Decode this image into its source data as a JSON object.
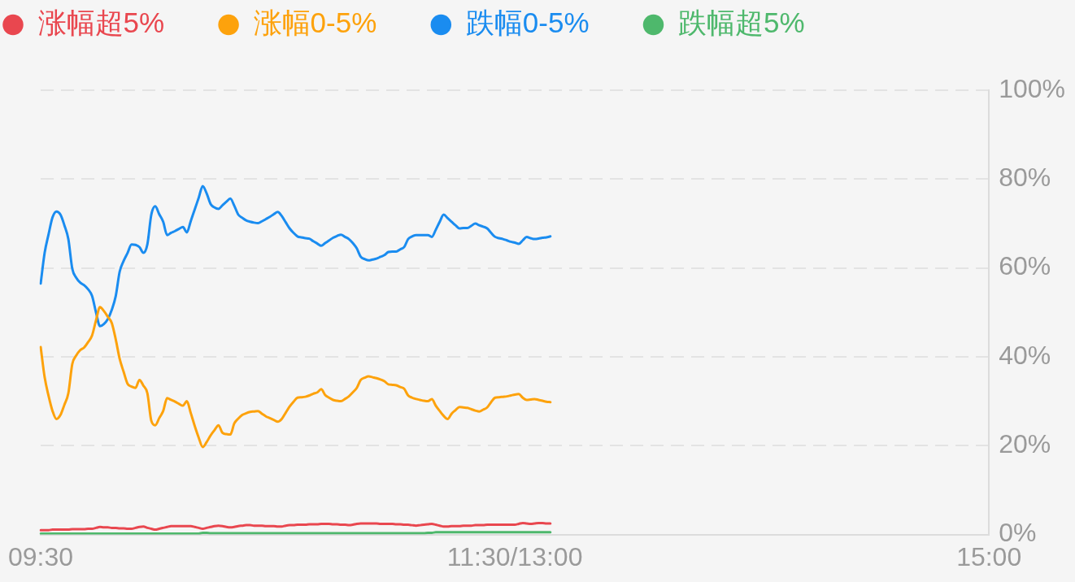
{
  "chart_data": {
    "type": "line",
    "legend": "top left",
    "grid": "y",
    "categories": [
      "09:30",
      null,
      null,
      null,
      null,
      null,
      null,
      null,
      null,
      null,
      null,
      null,
      null,
      null,
      null,
      null,
      null,
      null,
      null,
      null,
      null,
      null,
      null,
      null,
      null,
      null,
      null,
      null,
      null,
      null,
      null,
      null,
      null,
      null,
      null,
      null,
      null,
      null,
      null,
      null,
      null,
      null,
      null,
      null,
      null,
      null,
      null,
      null,
      null,
      null,
      null,
      null,
      null,
      null,
      null,
      null,
      null,
      null,
      null,
      null,
      null,
      null,
      null,
      null,
      null,
      null,
      null,
      null,
      null,
      null,
      null,
      null,
      null,
      null,
      null,
      null,
      null,
      null,
      null,
      null,
      null,
      null,
      null,
      null,
      null,
      null,
      null,
      null,
      null,
      null,
      null,
      null,
      null,
      null,
      null,
      null,
      null,
      null,
      null,
      null,
      null,
      null,
      null,
      null,
      null,
      null,
      null,
      null,
      null,
      null,
      null,
      null,
      null,
      null,
      null,
      null,
      null,
      null,
      null,
      null,
      "11:30/13:00",
      null,
      null,
      null,
      null,
      null,
      null,
      null,
      null,
      null,
      null,
      null,
      null,
      null,
      null,
      null,
      null,
      null,
      null,
      null,
      null,
      null,
      null,
      null,
      null,
      null,
      null,
      null,
      null,
      null,
      null,
      null,
      null,
      null,
      null,
      null,
      null,
      null,
      null,
      null,
      null,
      null,
      null,
      null,
      null,
      null,
      null,
      null,
      null,
      null,
      null,
      null,
      null,
      null,
      null,
      null,
      null,
      null,
      null,
      null,
      null,
      null,
      null,
      null,
      null,
      null,
      null,
      null,
      null,
      null,
      null,
      null,
      null,
      null,
      null,
      null,
      null,
      null,
      null,
      null,
      null,
      null,
      null,
      null,
      null,
      null,
      null,
      null,
      null,
      null,
      null,
      null,
      null,
      null,
      null,
      null,
      null,
      null,
      null,
      null,
      null,
      null,
      null,
      null,
      null,
      null,
      null,
      null,
      null,
      null,
      null,
      null,
      null,
      null,
      null,
      null,
      null,
      null,
      null,
      null,
      "15:00"
    ],
    "ylim": [
      0,
      100
    ],
    "yticks": [
      {
        "value": 0,
        "label": "0%"
      },
      {
        "value": 20,
        "label": "20%"
      },
      {
        "value": 40,
        "label": "40%"
      },
      {
        "value": 60,
        "label": "60%"
      },
      {
        "value": 80,
        "label": "80%"
      },
      {
        "value": 100,
        "label": "100%"
      }
    ],
    "series": [
      {
        "name": "涨幅超5%",
        "color": "#e9474f",
        "values": [
          1.0,
          1.0,
          1.0,
          1.1,
          1.1,
          1.1,
          1.1,
          1.1,
          1.2,
          1.2,
          1.2,
          1.2,
          1.3,
          1.3,
          1.5,
          1.7,
          1.6,
          1.6,
          1.5,
          1.5,
          1.4,
          1.4,
          1.3,
          1.3,
          1.5,
          1.7,
          1.8,
          1.5,
          1.3,
          1.1,
          1.3,
          1.5,
          1.7,
          1.9,
          1.9,
          1.9,
          1.9,
          1.9,
          1.9,
          1.7,
          1.5,
          1.3,
          1.5,
          1.7,
          1.9,
          2.0,
          1.9,
          1.7,
          1.6,
          1.7,
          1.9,
          2.0,
          2.1,
          2.1,
          2.0,
          2.0,
          2.0,
          1.9,
          1.9,
          1.9,
          1.8,
          1.8,
          2.0,
          2.1,
          2.1,
          2.2,
          2.2,
          2.2,
          2.3,
          2.3,
          2.3,
          2.4,
          2.4,
          2.4,
          2.3,
          2.3,
          2.2,
          2.2,
          2.1,
          2.2,
          2.4,
          2.5,
          2.5,
          2.5,
          2.5,
          2.5,
          2.4,
          2.4,
          2.4,
          2.4,
          2.3,
          2.3,
          2.2,
          2.2,
          2.1,
          2.0,
          2.1,
          2.2,
          2.3,
          2.4,
          2.2,
          2.0,
          1.8,
          1.8,
          1.9,
          1.9,
          1.9,
          2.0,
          2.0,
          2.0,
          2.1,
          2.1,
          2.1,
          2.2,
          2.2,
          2.2,
          2.2,
          2.2,
          2.2,
          2.2,
          2.2,
          2.4,
          2.6,
          2.5,
          2.4,
          2.5,
          2.6,
          2.6,
          2.5,
          2.5,
          null,
          null,
          null,
          null,
          null,
          null,
          null,
          null,
          null,
          null,
          null,
          null,
          null,
          null,
          null,
          null,
          null,
          null,
          null,
          null,
          null,
          null,
          null,
          null,
          null,
          null,
          null,
          null,
          null,
          null,
          null,
          null,
          null,
          null,
          null,
          null,
          null,
          null,
          null,
          null,
          null,
          null,
          null,
          null,
          null,
          null,
          null,
          null,
          null,
          null,
          null,
          null,
          null,
          null,
          null,
          null,
          null,
          null,
          null,
          null,
          null,
          null,
          null,
          null,
          null,
          null,
          null,
          null,
          null,
          null,
          null,
          null,
          null,
          null,
          null,
          null,
          null,
          null,
          null,
          null,
          null,
          null,
          null,
          null,
          null,
          null,
          null,
          null,
          null,
          null,
          null,
          null,
          null,
          null,
          null,
          null,
          null,
          null,
          null,
          null,
          null,
          null,
          null,
          null,
          null,
          null,
          null,
          null,
          null,
          null,
          null
        ]
      },
      {
        "name": "涨幅0-5%",
        "color": "#fda20c",
        "values": [
          42.2,
          35.4,
          31.2,
          27.8,
          26.0,
          26.9,
          29.2,
          31.8,
          38.4,
          40.3,
          41.5,
          42.1,
          43.3,
          44.8,
          48.2,
          51.2,
          50.3,
          49.0,
          47.6,
          43.9,
          39.5,
          36.6,
          33.9,
          33.3,
          33.0,
          34.8,
          33.5,
          31.8,
          25.6,
          24.6,
          26.2,
          27.8,
          30.7,
          30.3,
          29.9,
          29.4,
          29.0,
          30.0,
          27.3,
          24.4,
          21.8,
          19.7,
          20.8,
          22.3,
          23.5,
          24.6,
          22.9,
          22.6,
          22.5,
          25.0,
          26.1,
          26.9,
          27.3,
          27.6,
          27.7,
          27.8,
          27.2,
          26.6,
          26.2,
          25.8,
          25.4,
          26.0,
          27.4,
          28.8,
          29.9,
          30.8,
          30.9,
          31.0,
          31.3,
          31.7,
          32.0,
          32.7,
          31.4,
          30.8,
          30.3,
          30.1,
          30.0,
          30.5,
          31.1,
          32.0,
          33.0,
          34.8,
          35.3,
          35.6,
          35.4,
          35.2,
          34.9,
          34.5,
          33.8,
          33.7,
          33.6,
          33.2,
          32.8,
          31.3,
          30.8,
          30.5,
          30.3,
          30.1,
          30.0,
          30.5,
          29.0,
          27.8,
          26.7,
          26.0,
          27.2,
          28.0,
          28.7,
          28.6,
          28.5,
          28.2,
          27.9,
          27.7,
          28.1,
          28.6,
          29.8,
          30.8,
          30.9,
          31.0,
          31.1,
          31.3,
          31.5,
          31.6,
          30.8,
          30.3,
          30.4,
          30.5,
          30.3,
          30.1,
          29.9,
          29.8,
          null,
          null,
          null,
          null,
          null,
          null,
          null,
          null,
          null,
          null,
          null,
          null,
          null,
          null,
          null,
          null,
          null,
          null,
          null,
          null,
          null,
          null,
          null,
          null,
          null,
          null,
          null,
          null,
          null,
          null,
          null,
          null,
          null,
          null,
          null,
          null,
          null,
          null,
          null,
          null,
          null,
          null,
          null,
          null,
          null,
          null,
          null,
          null,
          null,
          null,
          null,
          null,
          null,
          null,
          null,
          null,
          null,
          null,
          null,
          null,
          null,
          null,
          null,
          null,
          null,
          null,
          null,
          null,
          null,
          null,
          null,
          null,
          null,
          null,
          null,
          null,
          null,
          null,
          null,
          null,
          null,
          null,
          null,
          null,
          null,
          null,
          null,
          null,
          null,
          null,
          null,
          null,
          null,
          null,
          null,
          null,
          null,
          null,
          null,
          null,
          null,
          null,
          null,
          null,
          null,
          null,
          null,
          null,
          null,
          null,
          null
        ]
      },
      {
        "name": "跌幅0-5%",
        "color": "#1a8cf0",
        "values": [
          56.5,
          63.4,
          67.6,
          71.4,
          72.7,
          72.0,
          69.6,
          66.5,
          59.8,
          57.8,
          56.7,
          56.1,
          55.2,
          53.7,
          50.0,
          46.9,
          47.4,
          48.5,
          50.6,
          53.7,
          59.2,
          61.6,
          63.4,
          65.3,
          65.2,
          64.7,
          63.4,
          65.3,
          72.0,
          73.9,
          72.1,
          70.4,
          67.4,
          67.9,
          68.3,
          68.8,
          69.2,
          68.0,
          70.6,
          73.2,
          75.8,
          78.4,
          76.8,
          74.4,
          73.6,
          73.3,
          74.1,
          74.9,
          75.6,
          74.0,
          72.0,
          71.3,
          70.7,
          70.4,
          70.2,
          70.1,
          70.5,
          71.0,
          71.5,
          72.1,
          72.6,
          71.7,
          70.3,
          68.9,
          67.9,
          67.1,
          66.9,
          66.7,
          66.6,
          66.0,
          65.5,
          65.0,
          65.6,
          66.2,
          66.8,
          67.2,
          67.5,
          67.0,
          66.5,
          65.6,
          64.4,
          62.5,
          62.0,
          61.7,
          61.9,
          62.1,
          62.5,
          62.9,
          63.6,
          63.7,
          63.7,
          64.2,
          64.7,
          66.5,
          67.1,
          67.4,
          67.4,
          67.4,
          67.4,
          67.0,
          68.6,
          70.4,
          72.0,
          71.2,
          70.4,
          69.6,
          68.9,
          69.0,
          69.0,
          69.5,
          70.0,
          69.6,
          69.3,
          68.9,
          67.9,
          67.0,
          66.7,
          66.5,
          66.2,
          65.9,
          65.7,
          65.4,
          66.2,
          67.0,
          66.7,
          66.5,
          66.6,
          66.8,
          66.9,
          67.1,
          null,
          null,
          null,
          null,
          null,
          null,
          null,
          null,
          null,
          null,
          null,
          null,
          null,
          null,
          null,
          null,
          null,
          null,
          null,
          null,
          null,
          null,
          null,
          null,
          null,
          null,
          null,
          null,
          null,
          null,
          null,
          null,
          null,
          null,
          null,
          null,
          null,
          null,
          null,
          null,
          null,
          null,
          null,
          null,
          null,
          null,
          null,
          null,
          null,
          null,
          null,
          null,
          null,
          null,
          null,
          null,
          null,
          null,
          null,
          null,
          null,
          null,
          null,
          null,
          null,
          null,
          null,
          null,
          null,
          null,
          null,
          null,
          null,
          null,
          null,
          null,
          null,
          null,
          null,
          null,
          null,
          null,
          null,
          null,
          null,
          null,
          null,
          null,
          null,
          null,
          null,
          null,
          null,
          null,
          null,
          null,
          null,
          null,
          null,
          null,
          null,
          null,
          null,
          null,
          null,
          null,
          null,
          null,
          null,
          null,
          null
        ]
      },
      {
        "name": "跌幅超5%",
        "color": "#4eb86c",
        "values": [
          0.2,
          0.2,
          0.2,
          0.2,
          0.2,
          0.2,
          0.2,
          0.2,
          0.2,
          0.2,
          0.2,
          0.2,
          0.2,
          0.2,
          0.2,
          0.2,
          0.2,
          0.2,
          0.2,
          0.2,
          0.2,
          0.2,
          0.2,
          0.2,
          0.2,
          0.2,
          0.2,
          0.2,
          0.2,
          0.2,
          0.2,
          0.2,
          0.2,
          0.2,
          0.2,
          0.2,
          0.2,
          0.2,
          0.2,
          0.2,
          0.2,
          0.4,
          0.4,
          0.3,
          0.3,
          0.3,
          0.3,
          0.3,
          0.3,
          0.3,
          0.3,
          0.3,
          0.3,
          0.3,
          0.3,
          0.3,
          0.3,
          0.3,
          0.3,
          0.3,
          0.3,
          0.3,
          0.3,
          0.3,
          0.3,
          0.3,
          0.3,
          0.3,
          0.3,
          0.3,
          0.3,
          0.3,
          0.3,
          0.3,
          0.3,
          0.3,
          0.3,
          0.3,
          0.3,
          0.3,
          0.3,
          0.3,
          0.3,
          0.3,
          0.3,
          0.3,
          0.3,
          0.3,
          0.3,
          0.3,
          0.3,
          0.3,
          0.3,
          0.3,
          0.3,
          0.3,
          0.3,
          0.3,
          0.4,
          0.4,
          0.5,
          0.5,
          0.5,
          0.5,
          0.5,
          0.5,
          0.5,
          0.5,
          0.5,
          0.5,
          0.5,
          0.5,
          0.5,
          0.5,
          0.5,
          0.5,
          0.5,
          0.5,
          0.5,
          0.5,
          0.5,
          0.5,
          0.5,
          0.5,
          0.5,
          0.5,
          0.5,
          0.5,
          0.5,
          0.5,
          null,
          null,
          null,
          null,
          null,
          null,
          null,
          null,
          null,
          null,
          null,
          null,
          null,
          null,
          null,
          null,
          null,
          null,
          null,
          null,
          null,
          null,
          null,
          null,
          null,
          null,
          null,
          null,
          null,
          null,
          null,
          null,
          null,
          null,
          null,
          null,
          null,
          null,
          null,
          null,
          null,
          null,
          null,
          null,
          null,
          null,
          null,
          null,
          null,
          null,
          null,
          null,
          null,
          null,
          null,
          null,
          null,
          null,
          null,
          null,
          null,
          null,
          null,
          null,
          null,
          null,
          null,
          null,
          null,
          null,
          null,
          null,
          null,
          null,
          null,
          null,
          null,
          null,
          null,
          null,
          null,
          null,
          null,
          null,
          null,
          null,
          null,
          null,
          null,
          null,
          null,
          null,
          null,
          null,
          null,
          null,
          null,
          null,
          null,
          null,
          null,
          null,
          null,
          null,
          null,
          null,
          null,
          null,
          null,
          null,
          null
        ]
      }
    ]
  }
}
